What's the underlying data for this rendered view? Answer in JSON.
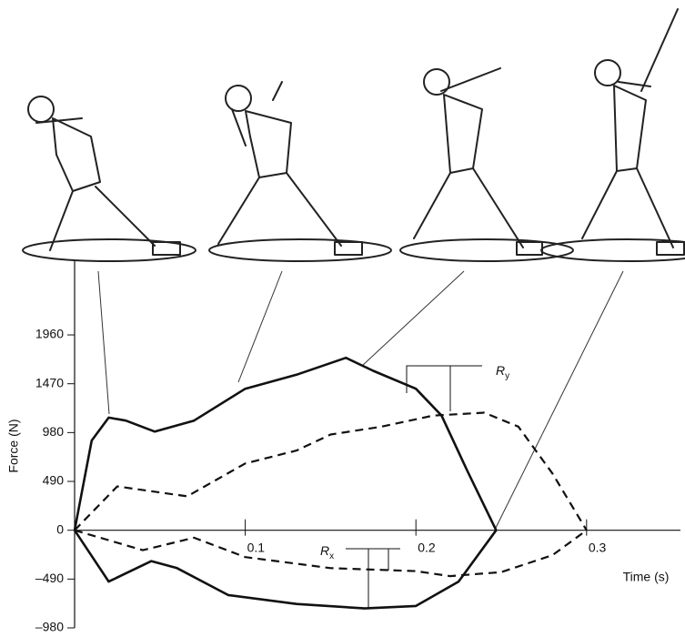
{
  "chart_data": {
    "type": "line",
    "y_label": "Force (N)",
    "x_label": "Time (s)",
    "xlim": [
      0,
      0.355
    ],
    "xticks": [
      0.1,
      0.2,
      0.3
    ],
    "ylim": [
      -980,
      2700
    ],
    "yticks": [
      1960,
      1470,
      980,
      490,
      0,
      {
        "value": -490,
        "label": "–490"
      },
      {
        "value": -980,
        "label": "–980"
      }
    ],
    "series": [
      {
        "color": "#111111",
        "style": "solid",
        "x": [
          0,
          0.01,
          0.02,
          0.03,
          0.047,
          0.07,
          0.1,
          0.13,
          0.159,
          0.175,
          0.2,
          0.215,
          0.23,
          0.247
        ],
        "values": [
          0,
          900,
          1130,
          1100,
          990,
          1100,
          1420,
          1560,
          1730,
          1600,
          1420,
          1150,
          600,
          0
        ]
      },
      {
        "color": "#111111",
        "style": "dashed",
        "x": [
          0,
          0.025,
          0.066,
          0.1,
          0.13,
          0.15,
          0.18,
          0.21,
          0.24,
          0.26,
          0.28,
          0.3
        ],
        "values": [
          0,
          440,
          340,
          670,
          800,
          960,
          1040,
          1150,
          1180,
          1040,
          570,
          0
        ]
      },
      {
        "color": "#111111",
        "style": "solid",
        "x": [
          0,
          0.02,
          0.045,
          0.06,
          0.09,
          0.13,
          0.17,
          0.2,
          0.225,
          0.247
        ],
        "values": [
          0,
          -515,
          -310,
          -380,
          -650,
          -740,
          -785,
          -760,
          -515,
          0
        ]
      },
      {
        "color": "#111111",
        "style": "dashed",
        "x": [
          0,
          0.04,
          0.07,
          0.1,
          0.15,
          0.2,
          0.22,
          0.25,
          0.28,
          0.3
        ],
        "values": [
          0,
          -200,
          -75,
          -270,
          -380,
          -410,
          -460,
          -420,
          -250,
          0
        ]
      }
    ],
    "annotations": [
      {
        "text": "R",
        "sub": "y"
      },
      {
        "text": "R",
        "sub": "x"
      }
    ]
  }
}
